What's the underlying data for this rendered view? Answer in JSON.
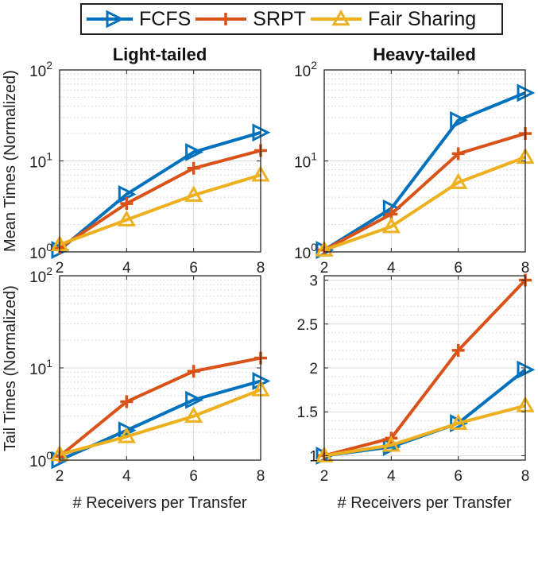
{
  "legend": {
    "items": [
      {
        "label": "FCFS",
        "color": "#0072BD",
        "marker": "triangle-right"
      },
      {
        "label": "SRPT",
        "color": "#D95319",
        "marker": "plus"
      },
      {
        "label": "Fair Sharing",
        "color": "#EDB120",
        "marker": "triangle-up"
      }
    ]
  },
  "row_labels": {
    "top": "Mean Times (Normalized)",
    "bottom": "Tail Times (Normalized)"
  },
  "chart_data": [
    {
      "type": "line",
      "title": "Light-tailed",
      "xlabel": "",
      "ylabel": "Mean Times (Normalized)",
      "yscale": "log",
      "xlim": [
        2,
        8
      ],
      "ylim": [
        1,
        100
      ],
      "xticks": [
        "2",
        "4",
        "6",
        "8"
      ],
      "yticks": [
        {
          "value": 1,
          "base": "10",
          "exp": "0"
        },
        {
          "value": 10,
          "base": "10",
          "exp": "1"
        },
        {
          "value": 100,
          "base": "10",
          "exp": "2"
        }
      ],
      "grid": true,
      "x": [
        2,
        4,
        6,
        8
      ],
      "series": [
        {
          "name": "FCFS",
          "values": [
            1.05,
            4.3,
            12.5,
            20.5
          ]
        },
        {
          "name": "SRPT",
          "values": [
            1.1,
            3.4,
            8.3,
            13.0
          ]
        },
        {
          "name": "Fair Sharing",
          "values": [
            1.2,
            2.25,
            4.2,
            7.0
          ]
        }
      ]
    },
    {
      "type": "line",
      "title": "Heavy-tailed",
      "xlabel": "",
      "ylabel": "",
      "yscale": "log",
      "xlim": [
        2,
        8
      ],
      "ylim": [
        1,
        100
      ],
      "xticks": [
        "2",
        "4",
        "6",
        "8"
      ],
      "yticks": [
        {
          "value": 1,
          "base": "10",
          "exp": "0"
        },
        {
          "value": 10,
          "base": "10",
          "exp": "1"
        },
        {
          "value": 100,
          "base": "10",
          "exp": "2"
        }
      ],
      "grid": true,
      "x": [
        2,
        4,
        6,
        8
      ],
      "series": [
        {
          "name": "FCFS",
          "values": [
            1.05,
            3.0,
            28.0,
            56.0
          ]
        },
        {
          "name": "SRPT",
          "values": [
            1.05,
            2.6,
            12.0,
            20.0
          ]
        },
        {
          "name": "Fair Sharing",
          "values": [
            1.05,
            1.9,
            5.8,
            11.0
          ]
        }
      ]
    },
    {
      "type": "line",
      "title": "",
      "xlabel": "# Receivers per Transfer",
      "ylabel": "Tail Times (Normalized)",
      "yscale": "log",
      "xlim": [
        2,
        8
      ],
      "ylim": [
        1,
        100
      ],
      "xticks": [
        "2",
        "4",
        "6",
        "8"
      ],
      "yticks": [
        {
          "value": 1,
          "base": "10",
          "exp": "0"
        },
        {
          "value": 10,
          "base": "10",
          "exp": "1"
        },
        {
          "value": 100,
          "base": "10",
          "exp": "2"
        }
      ],
      "grid": true,
      "x": [
        2,
        4,
        6,
        8
      ],
      "series": [
        {
          "name": "FCFS",
          "values": [
            1.0,
            2.1,
            4.5,
            7.2
          ]
        },
        {
          "name": "SRPT",
          "values": [
            1.1,
            4.3,
            9.2,
            12.8
          ]
        },
        {
          "name": "Fair Sharing",
          "values": [
            1.15,
            1.8,
            3.0,
            5.8
          ]
        }
      ]
    },
    {
      "type": "line",
      "title": "",
      "xlabel": "# Receivers per Transfer",
      "ylabel": "",
      "yscale": "linear",
      "xlim": [
        2,
        8
      ],
      "ylim": [
        0.95,
        3.05
      ],
      "xticks": [
        "2",
        "4",
        "6",
        "8"
      ],
      "yticks": [
        {
          "value": 1,
          "label": "1"
        },
        {
          "value": 1.5,
          "label": "1.5"
        },
        {
          "value": 2,
          "label": "2"
        },
        {
          "value": 2.5,
          "label": "2.5"
        },
        {
          "value": 3,
          "label": "3"
        }
      ],
      "grid": true,
      "x": [
        2,
        4,
        6,
        8
      ],
      "series": [
        {
          "name": "FCFS",
          "values": [
            1.0,
            1.1,
            1.37,
            1.98
          ]
        },
        {
          "name": "SRPT",
          "values": [
            1.0,
            1.2,
            2.2,
            3.0
          ]
        },
        {
          "name": "Fair Sharing",
          "values": [
            1.0,
            1.12,
            1.37,
            1.57
          ]
        }
      ]
    }
  ]
}
